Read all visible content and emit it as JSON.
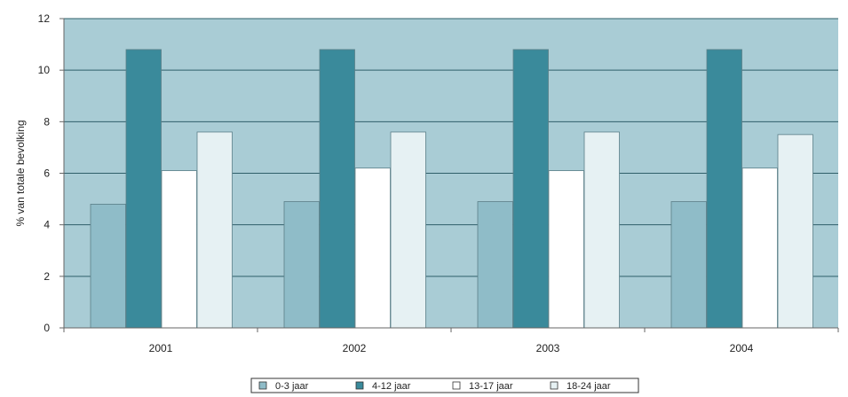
{
  "chart_data": {
    "type": "bar",
    "title": "",
    "xlabel": "",
    "ylabel": "% van totale bevolking",
    "ylim": [
      0,
      12
    ],
    "yticks": [
      0,
      2,
      4,
      6,
      8,
      10,
      12
    ],
    "grid": true,
    "legend_position": "bottom",
    "categories": [
      "2001",
      "2002",
      "2003",
      "2004"
    ],
    "series": [
      {
        "name": "0-3 jaar",
        "values": [
          4.8,
          4.9,
          4.9,
          4.9
        ],
        "color": "#8fbcc8"
      },
      {
        "name": "4-12 jaar",
        "values": [
          10.8,
          10.8,
          10.8,
          10.8
        ],
        "color": "#3a8a9b"
      },
      {
        "name": "13-17 jaar",
        "values": [
          6.1,
          6.2,
          6.1,
          6.2
        ],
        "color": "#ffffff"
      },
      {
        "name": "18-24 jaar",
        "values": [
          7.6,
          7.6,
          7.6,
          7.5
        ],
        "color": "#e6f1f3"
      }
    ],
    "plot_background": "#a9ccd5",
    "gridline_color": "#2f5f6a"
  }
}
